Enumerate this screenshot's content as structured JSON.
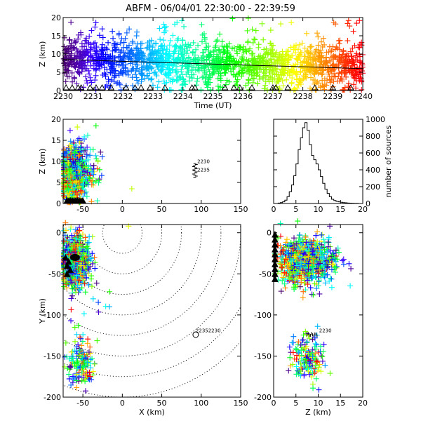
{
  "title": "ABFM - 06/04/01 22:30:00 - 22:39:59",
  "chart_data": [
    {
      "id": "time-height",
      "type": "scatter",
      "xlabel": "Time (UT)",
      "ylabel": "Z (km)",
      "xlim": [
        0,
        10
      ],
      "ylim": [
        0,
        20
      ],
      "xticks": [
        "2230",
        "2231",
        "2232",
        "2233",
        "2234",
        "2235",
        "2236",
        "2237",
        "2238",
        "2239",
        "2240"
      ],
      "yticks": [
        "0",
        "5",
        "10",
        "15",
        "20"
      ],
      "color_scale": "time (violet to red)",
      "trend_line": {
        "x": [
          0,
          10
        ],
        "y": [
          8.5,
          6.0
        ]
      },
      "station_markers_x": [
        0.1,
        0.3,
        0.5,
        0.6,
        0.9,
        1.1,
        1.3,
        1.6,
        2.1,
        2.4,
        2.6,
        2.9,
        3.4,
        4.3,
        4.4,
        5.4,
        5.7,
        5.9,
        6.3,
        7.0,
        7.1,
        7.5,
        8.4,
        9.0,
        9.6
      ]
    },
    {
      "id": "xz",
      "type": "scatter",
      "ylabel": "Z (km)",
      "xlim": [
        -75,
        150
      ],
      "ylim": [
        0,
        20
      ],
      "xticks": [
        "-50",
        "0",
        "50",
        "100",
        "150"
      ],
      "yticks": [
        "0",
        "5",
        "10",
        "15",
        "20"
      ],
      "annotations": [
        "2230",
        "2235"
      ]
    },
    {
      "id": "histogram",
      "type": "bar",
      "ylabel": "number of sources",
      "xlim": [
        0,
        20
      ],
      "ylim": [
        0,
        1000
      ],
      "xticks": [
        "0",
        "5",
        "10",
        "15",
        "20"
      ],
      "yticks": [
        "0",
        "200",
        "400",
        "600",
        "800",
        "1000"
      ],
      "bin_width": 0.5,
      "bins_start": 0,
      "counts": [
        0,
        0,
        5,
        10,
        20,
        40,
        80,
        140,
        220,
        330,
        470,
        640,
        780,
        900,
        960,
        870,
        700,
        570,
        520,
        470,
        400,
        320,
        240,
        170,
        120,
        80,
        50,
        35,
        25,
        20,
        15,
        10,
        8,
        5,
        4,
        3,
        2,
        2,
        0,
        0
      ]
    },
    {
      "id": "plan",
      "type": "scatter",
      "xlabel": "X (km)",
      "ylabel": "Y (km)",
      "xlim": [
        -75,
        150
      ],
      "ylim": [
        -200,
        10
      ],
      "xticks": [
        "-50",
        "0",
        "50",
        "100",
        "150"
      ],
      "yticks": [
        "-200",
        "-150",
        "-100",
        "-50",
        "0"
      ],
      "range_rings_km": [
        25,
        50,
        75,
        100,
        125,
        150,
        175,
        200
      ],
      "annotations": [
        "2235",
        "2230"
      ]
    },
    {
      "id": "zy",
      "type": "scatter",
      "xlabel": "Z (km)",
      "xlim": [
        0,
        20
      ],
      "ylim": [
        -200,
        10
      ],
      "xticks": [
        "0",
        "5",
        "10",
        "15",
        "20"
      ],
      "yticks": [
        "-200",
        "-150",
        "-100",
        "-50",
        "0"
      ],
      "annotations": [
        "2230"
      ]
    }
  ]
}
